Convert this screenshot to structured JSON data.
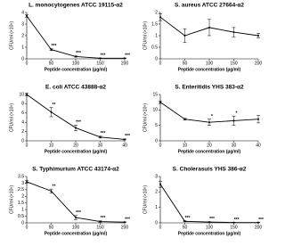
{
  "chart_data": [
    {
      "type": "line",
      "title": "L. monocytogenes ATCC 19115-α2",
      "x_label": "Peptide concentration (µg/ml)",
      "y_label": "CFU/ml (×10⁸)",
      "x": [
        0,
        50,
        100,
        150,
        200
      ],
      "values": [
        3.7,
        0.8,
        0.2,
        0.05,
        0.05
      ],
      "errors": [
        0.1,
        0.08,
        0.05,
        0.02,
        0.02
      ],
      "significance": [
        null,
        "***",
        "***",
        "***",
        "***"
      ],
      "color": "#000000",
      "xlim": [
        0,
        200
      ],
      "xticks": [
        0,
        50,
        100,
        150,
        200
      ],
      "ylim": [
        0,
        4
      ],
      "yticks": [
        0,
        1,
        2,
        3,
        4
      ]
    },
    {
      "type": "line",
      "title": "S. aureus ATCC 27664-α2",
      "x_label": "Peptide concentration (µg/ml)",
      "y_label": "CFU/ml (×10⁸)",
      "x": [
        0,
        50,
        100,
        150,
        200
      ],
      "values": [
        1.8,
        1.0,
        1.35,
        1.15,
        1.0
      ],
      "errors": [
        0.15,
        0.3,
        0.35,
        0.2,
        0.1
      ],
      "significance": [
        null,
        null,
        null,
        null,
        null
      ],
      "color": "#000000",
      "xlim": [
        0,
        200
      ],
      "xticks": [
        0,
        50,
        100,
        150,
        200
      ],
      "ylim": [
        0,
        2
      ],
      "yticks": [
        0,
        0.5,
        1,
        1.5,
        2
      ]
    },
    {
      "type": "line",
      "title": "E. coli ATCC 43888-α2",
      "x_label": "Peptide concentration (µg/ml)",
      "y_label": "CFU/ml (×10⁸)",
      "x": [
        0,
        10,
        20,
        30,
        40
      ],
      "values": [
        10,
        6.2,
        2.8,
        0.8,
        0.3
      ],
      "errors": [
        0.3,
        1.0,
        0.6,
        0.2,
        0.1
      ],
      "significance": [
        null,
        "**",
        "***",
        "***",
        "***"
      ],
      "color": "#000000",
      "xlim": [
        0,
        40
      ],
      "xticks": [
        0,
        10,
        20,
        30,
        40
      ],
      "ylim": [
        0,
        10
      ],
      "yticks": [
        0,
        2,
        4,
        6,
        8,
        10
      ]
    },
    {
      "type": "line",
      "title": "S. Enteritidis YHS 383-α2",
      "x_label": "Peptide concentration (µg/ml)",
      "y_label": "CFU/ml (×10⁸)",
      "x": [
        0,
        10,
        20,
        30,
        40
      ],
      "values": [
        12.5,
        7,
        6,
        6.5,
        7
      ],
      "errors": [
        0.4,
        0.3,
        1.0,
        1.5,
        1.2
      ],
      "significance": [
        null,
        null,
        "*",
        "*",
        null
      ],
      "color": "#000000",
      "xlim": [
        0,
        40
      ],
      "xticks": [
        0,
        10,
        20,
        30,
        40
      ],
      "ylim": [
        0,
        15
      ],
      "yticks": [
        0,
        5,
        10,
        15
      ]
    },
    {
      "type": "line",
      "title": "S. Typhimurium ATCC 43174-α2",
      "x_label": "Peptide concentration (µg/ml)",
      "y_label": "CFU/ml (×10⁸)",
      "x": [
        0,
        50,
        100,
        150,
        200
      ],
      "values": [
        3.1,
        2.4,
        0.4,
        0.1,
        0.05
      ],
      "errors": [
        0.1,
        0.15,
        0.15,
        0.05,
        0.02
      ],
      "significance": [
        null,
        "**",
        "***",
        "***",
        "***"
      ],
      "color": "#000000",
      "xlim": [
        0,
        200
      ],
      "xticks": [
        0,
        50,
        100,
        150,
        200
      ],
      "ylim": [
        0,
        3.5
      ],
      "yticks": [
        0,
        0.5,
        1,
        1.5,
        2,
        2.5,
        3,
        3.5
      ]
    },
    {
      "type": "line",
      "title": "S. Cholerasuis YHS 386-α2",
      "x_label": "Peptide concentration (µg/ml)",
      "y_label": "CFU/ml (×10⁸)",
      "x": [
        0,
        50,
        100,
        150,
        200
      ],
      "values": [
        2.5,
        0.1,
        0.05,
        0.02,
        0.02
      ],
      "errors": [
        0.2,
        0.03,
        0.02,
        0.01,
        0.01
      ],
      "significance": [
        null,
        "***",
        "***",
        "***",
        "***"
      ],
      "color": "#000000",
      "xlim": [
        0,
        200
      ],
      "xticks": [
        0,
        50,
        100,
        150,
        200
      ],
      "ylim": [
        0,
        3
      ],
      "yticks": [
        0,
        1,
        2,
        3
      ]
    }
  ]
}
